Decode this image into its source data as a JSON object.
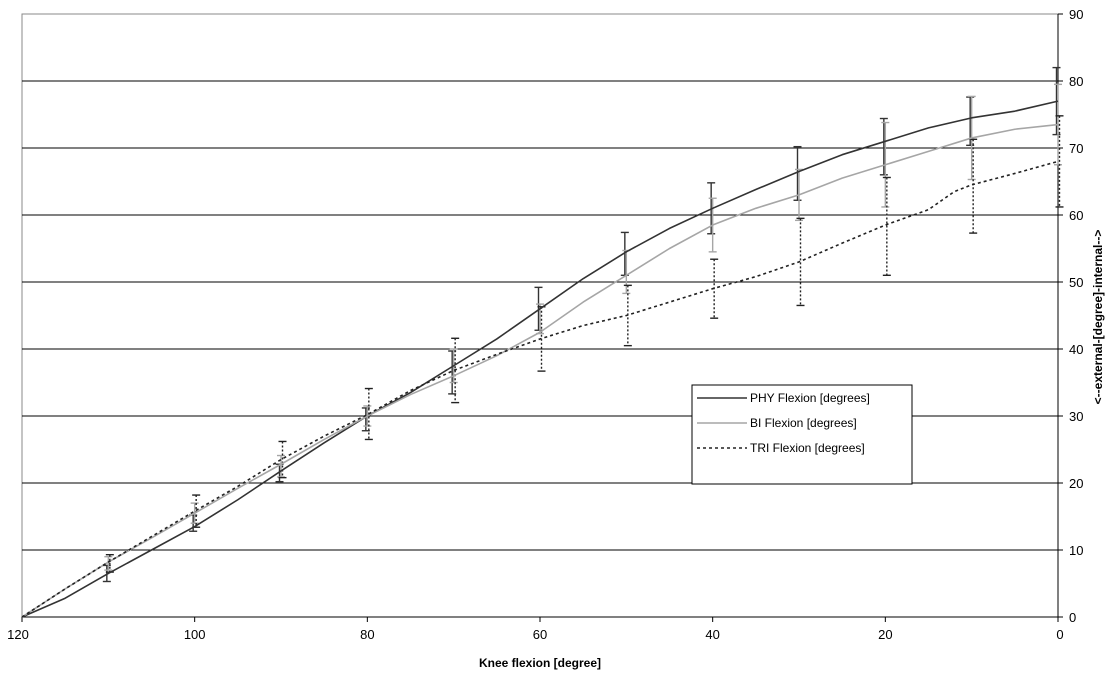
{
  "chart_data": {
    "type": "line",
    "title": "",
    "xlabel": "Knee flexion [degree]",
    "ylabel": "<--external-[degree]-internal-->",
    "xlim": [
      120,
      0
    ],
    "ylim": [
      0,
      90
    ],
    "x_ticks": [
      "120",
      "100",
      "80",
      "60",
      "40",
      "20",
      "0"
    ],
    "y_ticks": [
      "0",
      "10",
      "20",
      "30",
      "40",
      "50",
      "60",
      "70",
      "80",
      "90"
    ],
    "grid": true,
    "legend_position": "right-center",
    "series": [
      {
        "name": "PHY Flexion [degrees]",
        "color": "#333333",
        "dash": "solid",
        "points": [
          [
            120,
            0
          ],
          [
            115,
            2.8
          ],
          [
            110,
            6.5
          ],
          [
            105,
            10
          ],
          [
            100,
            13.5
          ],
          [
            95,
            17.5
          ],
          [
            90,
            21.8
          ],
          [
            85,
            26
          ],
          [
            80,
            30
          ],
          [
            75,
            33.5
          ],
          [
            70,
            37.5
          ],
          [
            65,
            41.5
          ],
          [
            60,
            46
          ],
          [
            55,
            50.5
          ],
          [
            50,
            54.5
          ],
          [
            45,
            58
          ],
          [
            40,
            61
          ],
          [
            35,
            63.8
          ],
          [
            30,
            66.5
          ],
          [
            25,
            69
          ],
          [
            20,
            71
          ],
          [
            15,
            73
          ],
          [
            10,
            74.5
          ],
          [
            5,
            75.5
          ],
          [
            0,
            77
          ]
        ],
        "error_bars": [
          [
            110,
            6.5,
            1.2
          ],
          [
            100,
            14,
            1.2
          ],
          [
            90,
            21.5,
            1.3
          ],
          [
            80,
            29.5,
            1.7
          ],
          [
            70,
            36.5,
            3.2
          ],
          [
            60,
            46,
            3.2
          ],
          [
            50,
            54.2,
            3.2
          ],
          [
            40,
            61,
            3.8
          ],
          [
            30,
            66.2,
            4
          ],
          [
            20,
            70.2,
            4.2
          ],
          [
            10,
            74,
            3.6
          ],
          [
            0,
            77,
            5
          ]
        ]
      },
      {
        "name": "BI Flexion [degrees]",
        "color": "#a6a6a6",
        "dash": "solid",
        "points": [
          [
            120,
            0
          ],
          [
            115,
            4.2
          ],
          [
            110,
            8.2
          ],
          [
            105,
            11.8
          ],
          [
            100,
            15.5
          ],
          [
            95,
            19.2
          ],
          [
            90,
            22.8
          ],
          [
            85,
            26.5
          ],
          [
            80,
            30
          ],
          [
            75,
            33.2
          ],
          [
            70,
            36
          ],
          [
            65,
            39
          ],
          [
            60,
            42.5
          ],
          [
            55,
            47
          ],
          [
            50,
            51
          ],
          [
            45,
            55
          ],
          [
            40,
            58.5
          ],
          [
            35,
            61
          ],
          [
            30,
            63
          ],
          [
            25,
            65.5
          ],
          [
            20,
            67.5
          ],
          [
            15,
            69.5
          ],
          [
            10,
            71.5
          ],
          [
            5,
            72.8
          ],
          [
            0,
            73.5
          ]
        ],
        "error_bars": [
          [
            110,
            8,
            1
          ],
          [
            100,
            15.5,
            1.5
          ],
          [
            90,
            22.5,
            1.6
          ],
          [
            80,
            30,
            1.5
          ],
          [
            70,
            37.5,
            2.5
          ],
          [
            60,
            44.5,
            2.2
          ],
          [
            50,
            51.5,
            3.2
          ],
          [
            40,
            58.5,
            4
          ],
          [
            30,
            63,
            3.8
          ],
          [
            20,
            67.5,
            6.3
          ],
          [
            10,
            71.5,
            6.2
          ],
          [
            0,
            73.5,
            6
          ]
        ]
      },
      {
        "name": "TRI Flexion [degrees]",
        "color": "#222222",
        "dash": "dashed",
        "points": [
          [
            120,
            0
          ],
          [
            115,
            4.2
          ],
          [
            110,
            8.2
          ],
          [
            105,
            12
          ],
          [
            100,
            15.8
          ],
          [
            95,
            19.5
          ],
          [
            90,
            23.5
          ],
          [
            85,
            27
          ],
          [
            80,
            30.2
          ],
          [
            75,
            33.8
          ],
          [
            70,
            36.8
          ],
          [
            65,
            39.2
          ],
          [
            60,
            41.5
          ],
          [
            55,
            43.5
          ],
          [
            50,
            45
          ],
          [
            45,
            47
          ],
          [
            40,
            49
          ],
          [
            35,
            50.8
          ],
          [
            30,
            53
          ],
          [
            25,
            55.8
          ],
          [
            20,
            58.5
          ],
          [
            15,
            60.8
          ],
          [
            12,
            63.5
          ],
          [
            10,
            64.5
          ],
          [
            5,
            66.2
          ],
          [
            0,
            68
          ]
        ],
        "error_bars": [
          [
            110,
            8,
            1.3
          ],
          [
            100,
            15.8,
            2.4
          ],
          [
            90,
            23.5,
            2.7
          ],
          [
            80,
            30.3,
            3.8
          ],
          [
            70,
            36.8,
            4.8
          ],
          [
            60,
            41.5,
            4.8
          ],
          [
            50,
            45,
            4.5
          ],
          [
            40,
            49,
            4.4
          ],
          [
            30,
            53,
            6.5
          ],
          [
            20,
            58.3,
            7.3
          ],
          [
            10,
            64.3,
            7
          ],
          [
            0,
            68,
            6.8
          ]
        ]
      }
    ]
  }
}
